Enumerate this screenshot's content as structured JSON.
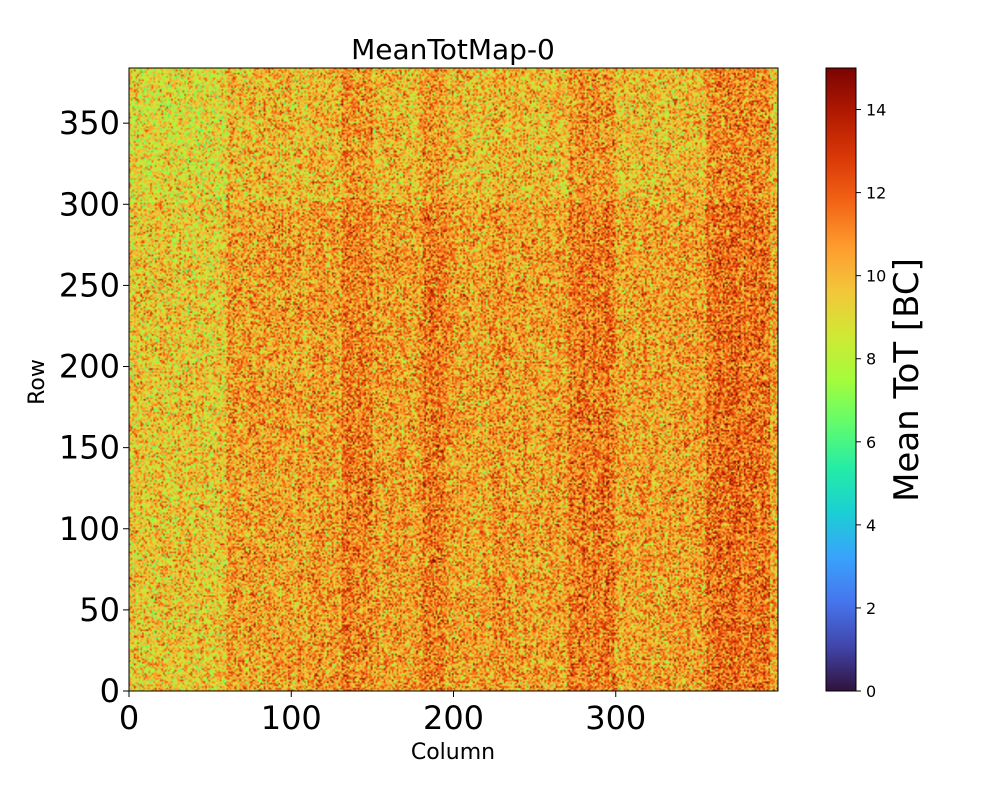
{
  "chart_data": {
    "type": "heatmap",
    "title": "MeanTotMap-0",
    "xlabel": "Column",
    "ylabel": "Row",
    "xlim": [
      0,
      400
    ],
    "ylim": [
      0,
      384
    ],
    "columns": 400,
    "rows": 384,
    "x_ticks": [
      0,
      100,
      200,
      300
    ],
    "y_ticks": [
      0,
      50,
      100,
      150,
      200,
      250,
      300,
      350
    ],
    "colorbar": {
      "label": "Mean ToT [BC]",
      "range": [
        0,
        15
      ],
      "ticks": [
        0,
        2,
        4,
        6,
        8,
        10,
        12,
        14
      ],
      "colormap": "turbo",
      "colormap_stops": [
        "#30123b",
        "#4145ab",
        "#4675ed",
        "#39a2fc",
        "#1bcfd4",
        "#24eca6",
        "#61fc6c",
        "#a4fc3b",
        "#d1e834",
        "#f3c63a",
        "#fe9b2d",
        "#f36315",
        "#d93806",
        "#b11901",
        "#7a0402"
      ]
    },
    "value_distribution": {
      "typical_min": 7,
      "typical_max": 15,
      "mean": 10.5
    },
    "notable_features": "values mostly 8-14 BC; higher (red) vertical bands near columns 140, 185, 290, 375; lower (green) values near columns 0-60 and top rows"
  }
}
